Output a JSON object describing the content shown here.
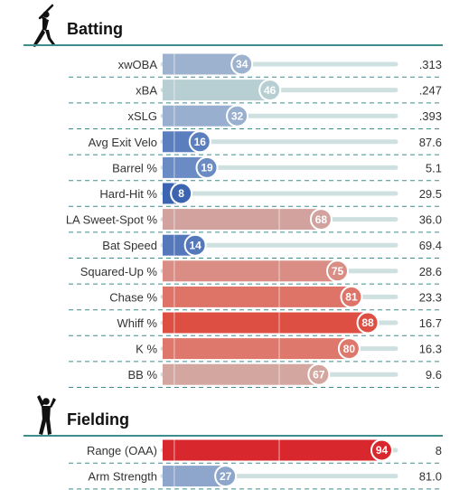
{
  "chart_data": {
    "type": "bar",
    "orientation": "horizontal",
    "xlim": [
      0,
      100
    ],
    "sections": [
      {
        "title": "Batting",
        "icon": "batter-icon",
        "metrics": [
          {
            "label": "xwOBA",
            "percentile": 34,
            "value": ".313",
            "color": "#9db2cf"
          },
          {
            "label": "xBA",
            "percentile": 46,
            "value": ".247",
            "color": "#b7cfd3"
          },
          {
            "label": "xSLG",
            "percentile": 32,
            "value": ".393",
            "color": "#98afcf"
          },
          {
            "label": "Avg Exit Velo",
            "percentile": 16,
            "value": "87.6",
            "color": "#5b7fbe"
          },
          {
            "label": "Barrel %",
            "percentile": 19,
            "value": "5.1",
            "color": "#6b8bc4"
          },
          {
            "label": "Hard-Hit %",
            "percentile": 8,
            "value": "29.5",
            "color": "#3c64b0"
          },
          {
            "label": "LA Sweet-Spot %",
            "percentile": 68,
            "value": "36.0",
            "color": "#d2a39e"
          },
          {
            "label": "Bat Speed",
            "percentile": 14,
            "value": "69.4",
            "color": "#5578bb"
          },
          {
            "label": "Squared-Up %",
            "percentile": 75,
            "value": "28.6",
            "color": "#da8d84"
          },
          {
            "label": "Chase %",
            "percentile": 81,
            "value": "23.3",
            "color": "#de7468"
          },
          {
            "label": "Whiff %",
            "percentile": 88,
            "value": "16.7",
            "color": "#dd4e43"
          },
          {
            "label": "K %",
            "percentile": 80,
            "value": "16.3",
            "color": "#de786c"
          },
          {
            "label": "BB %",
            "percentile": 67,
            "value": "9.6",
            "color": "#d3a6a0"
          }
        ]
      },
      {
        "title": "Fielding",
        "icon": "fielder-icon",
        "metrics": [
          {
            "label": "Range (OAA)",
            "percentile": 94,
            "value": "8",
            "color": "#d9272e"
          },
          {
            "label": "Arm Strength",
            "percentile": 27,
            "value": "81.0",
            "color": "#8ea6cc"
          }
        ]
      }
    ]
  }
}
